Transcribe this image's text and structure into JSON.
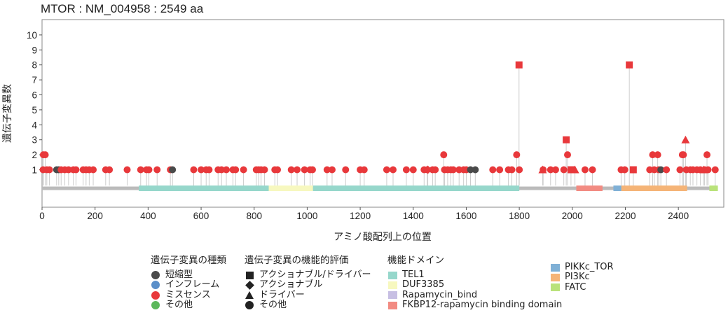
{
  "chart_data": {
    "type": "lollipop",
    "title": "MTOR : NM_004958 : 2549 aa",
    "xlabel": "アミノ酸配列上の位置",
    "ylabel": "遺伝子変異数",
    "xlim": [
      0,
      2549
    ],
    "ylim": [
      0,
      10
    ],
    "xticks": [
      0,
      200,
      400,
      600,
      800,
      1000,
      1200,
      1400,
      1600,
      1800,
      2000,
      2200,
      2400
    ],
    "yticks": [
      1,
      2,
      3,
      4,
      5,
      6,
      7,
      8,
      9,
      10
    ],
    "protein_length": 2549,
    "colors": {
      "truncating": "#4a4a4a",
      "inframe": "#5b8fc9",
      "missense": "#e8383b",
      "other": "#5cb85c",
      "stem": "#cccccc",
      "backbone": "#bbbbbb",
      "dark_symbol": "#222222"
    },
    "domains": [
      {
        "name": "TEL1",
        "start": 365,
        "end": 855,
        "color": "#96d7cb"
      },
      {
        "name": "DUF3385",
        "start": 855,
        "end": 1022,
        "color": "#f7f8bf"
      },
      {
        "name": "TEL1",
        "start": 1022,
        "end": 1800,
        "color": "#96d7cb"
      },
      {
        "name": "FKBP12-rapamycin binding domain",
        "start": 2015,
        "end": 2114,
        "color": "#f28b82"
      },
      {
        "name": "PIKKc_TOR",
        "start": 2155,
        "end": 2185,
        "color": "#7fb0d6"
      },
      {
        "name": "PI3Kc",
        "start": 2185,
        "end": 2433,
        "color": "#f5b477"
      },
      {
        "name": "FATC",
        "start": 2517,
        "end": 2549,
        "color": "#b9e27a"
      }
    ],
    "mutations": [
      {
        "pos": 5,
        "count": 2,
        "type": "missense",
        "shape": "circle"
      },
      {
        "pos": 12,
        "count": 2,
        "type": "missense",
        "shape": "circle"
      },
      {
        "pos": 4,
        "count": 1,
        "type": "missense",
        "shape": "circle"
      },
      {
        "pos": 18,
        "count": 1,
        "type": "missense",
        "shape": "circle"
      },
      {
        "pos": 28,
        "count": 1,
        "type": "missense",
        "shape": "circle"
      },
      {
        "pos": 55,
        "count": 1,
        "type": "truncating",
        "shape": "circle"
      },
      {
        "pos": 63,
        "count": 1,
        "type": "truncating",
        "shape": "circle"
      },
      {
        "pos": 72,
        "count": 1,
        "type": "missense",
        "shape": "circle"
      },
      {
        "pos": 86,
        "count": 1,
        "type": "missense",
        "shape": "circle"
      },
      {
        "pos": 100,
        "count": 1,
        "type": "missense",
        "shape": "circle"
      },
      {
        "pos": 118,
        "count": 1,
        "type": "missense",
        "shape": "circle"
      },
      {
        "pos": 128,
        "count": 1,
        "type": "missense",
        "shape": "circle"
      },
      {
        "pos": 155,
        "count": 1,
        "type": "missense",
        "shape": "circle"
      },
      {
        "pos": 166,
        "count": 1,
        "type": "missense",
        "shape": "circle"
      },
      {
        "pos": 178,
        "count": 1,
        "type": "missense",
        "shape": "circle"
      },
      {
        "pos": 193,
        "count": 1,
        "type": "missense",
        "shape": "circle"
      },
      {
        "pos": 240,
        "count": 1,
        "type": "missense",
        "shape": "circle"
      },
      {
        "pos": 254,
        "count": 1,
        "type": "missense",
        "shape": "circle"
      },
      {
        "pos": 321,
        "count": 1,
        "type": "missense",
        "shape": "circle"
      },
      {
        "pos": 372,
        "count": 1,
        "type": "missense",
        "shape": "circle"
      },
      {
        "pos": 394,
        "count": 1,
        "type": "missense",
        "shape": "circle"
      },
      {
        "pos": 403,
        "count": 1,
        "type": "missense",
        "shape": "circle"
      },
      {
        "pos": 434,
        "count": 1,
        "type": "missense",
        "shape": "circle"
      },
      {
        "pos": 484,
        "count": 1,
        "type": "missense",
        "shape": "circle"
      },
      {
        "pos": 492,
        "count": 1,
        "type": "truncating",
        "shape": "circle"
      },
      {
        "pos": 572,
        "count": 1,
        "type": "missense",
        "shape": "circle"
      },
      {
        "pos": 600,
        "count": 1,
        "type": "missense",
        "shape": "circle"
      },
      {
        "pos": 619,
        "count": 1,
        "type": "missense",
        "shape": "circle"
      },
      {
        "pos": 630,
        "count": 1,
        "type": "missense",
        "shape": "circle"
      },
      {
        "pos": 664,
        "count": 1,
        "type": "missense",
        "shape": "circle"
      },
      {
        "pos": 677,
        "count": 1,
        "type": "missense",
        "shape": "circle"
      },
      {
        "pos": 695,
        "count": 1,
        "type": "missense",
        "shape": "circle"
      },
      {
        "pos": 720,
        "count": 1,
        "type": "missense",
        "shape": "circle"
      },
      {
        "pos": 730,
        "count": 1,
        "type": "missense",
        "shape": "circle"
      },
      {
        "pos": 760,
        "count": 1,
        "type": "missense",
        "shape": "circle"
      },
      {
        "pos": 808,
        "count": 1,
        "type": "missense",
        "shape": "circle"
      },
      {
        "pos": 817,
        "count": 1,
        "type": "missense",
        "shape": "circle"
      },
      {
        "pos": 826,
        "count": 1,
        "type": "missense",
        "shape": "circle"
      },
      {
        "pos": 839,
        "count": 1,
        "type": "missense",
        "shape": "circle"
      },
      {
        "pos": 878,
        "count": 1,
        "type": "missense",
        "shape": "circle"
      },
      {
        "pos": 888,
        "count": 1,
        "type": "missense",
        "shape": "circle"
      },
      {
        "pos": 940,
        "count": 1,
        "type": "missense",
        "shape": "circle"
      },
      {
        "pos": 962,
        "count": 1,
        "type": "missense",
        "shape": "circle"
      },
      {
        "pos": 990,
        "count": 1,
        "type": "missense",
        "shape": "circle"
      },
      {
        "pos": 1011,
        "count": 1,
        "type": "missense",
        "shape": "circle"
      },
      {
        "pos": 1020,
        "count": 1,
        "type": "missense",
        "shape": "circle"
      },
      {
        "pos": 1075,
        "count": 1,
        "type": "missense",
        "shape": "circle"
      },
      {
        "pos": 1094,
        "count": 1,
        "type": "missense",
        "shape": "circle"
      },
      {
        "pos": 1145,
        "count": 1,
        "type": "missense",
        "shape": "circle"
      },
      {
        "pos": 1200,
        "count": 1,
        "type": "missense",
        "shape": "circle"
      },
      {
        "pos": 1215,
        "count": 1,
        "type": "missense",
        "shape": "circle"
      },
      {
        "pos": 1300,
        "count": 1,
        "type": "missense",
        "shape": "circle"
      },
      {
        "pos": 1324,
        "count": 1,
        "type": "missense",
        "shape": "circle"
      },
      {
        "pos": 1374,
        "count": 1,
        "type": "missense",
        "shape": "circle"
      },
      {
        "pos": 1400,
        "count": 1,
        "type": "missense",
        "shape": "circle"
      },
      {
        "pos": 1441,
        "count": 1,
        "type": "missense",
        "shape": "circle"
      },
      {
        "pos": 1453,
        "count": 1,
        "type": "missense",
        "shape": "circle"
      },
      {
        "pos": 1455,
        "count": 1,
        "type": "missense",
        "shape": "diamond"
      },
      {
        "pos": 1473,
        "count": 1,
        "type": "missense",
        "shape": "circle"
      },
      {
        "pos": 1483,
        "count": 1,
        "type": "missense",
        "shape": "circle"
      },
      {
        "pos": 1515,
        "count": 2,
        "type": "missense",
        "shape": "circle"
      },
      {
        "pos": 1518,
        "count": 1,
        "type": "missense",
        "shape": "circle"
      },
      {
        "pos": 1530,
        "count": 1,
        "type": "missense",
        "shape": "circle"
      },
      {
        "pos": 1542,
        "count": 1,
        "type": "missense",
        "shape": "circle"
      },
      {
        "pos": 1551,
        "count": 1,
        "type": "missense",
        "shape": "circle"
      },
      {
        "pos": 1573,
        "count": 1,
        "type": "missense",
        "shape": "circle"
      },
      {
        "pos": 1590,
        "count": 1,
        "type": "missense",
        "shape": "circle"
      },
      {
        "pos": 1600,
        "count": 1,
        "type": "missense",
        "shape": "circle"
      },
      {
        "pos": 1616,
        "count": 1,
        "type": "truncating",
        "shape": "circle"
      },
      {
        "pos": 1634,
        "count": 1,
        "type": "truncating",
        "shape": "circle"
      },
      {
        "pos": 1700,
        "count": 1,
        "type": "missense",
        "shape": "circle"
      },
      {
        "pos": 1726,
        "count": 1,
        "type": "missense",
        "shape": "circle"
      },
      {
        "pos": 1759,
        "count": 1,
        "type": "missense",
        "shape": "circle"
      },
      {
        "pos": 1772,
        "count": 1,
        "type": "missense",
        "shape": "circle"
      },
      {
        "pos": 1790,
        "count": 2,
        "type": "missense",
        "shape": "circle"
      },
      {
        "pos": 1799,
        "count": 8,
        "type": "missense",
        "shape": "square"
      },
      {
        "pos": 1800,
        "count": 1,
        "type": "missense",
        "shape": "circle"
      },
      {
        "pos": 1888,
        "count": 1,
        "type": "missense",
        "shape": "triangle"
      },
      {
        "pos": 1890,
        "count": 1,
        "type": "missense",
        "shape": "circle"
      },
      {
        "pos": 1918,
        "count": 1,
        "type": "missense",
        "shape": "circle"
      },
      {
        "pos": 1937,
        "count": 1,
        "type": "missense",
        "shape": "circle"
      },
      {
        "pos": 1968,
        "count": 1,
        "type": "missense",
        "shape": "circle"
      },
      {
        "pos": 1977,
        "count": 3,
        "type": "missense",
        "shape": "square"
      },
      {
        "pos": 1982,
        "count": 2,
        "type": "missense",
        "shape": "circle"
      },
      {
        "pos": 1995,
        "count": 1,
        "type": "missense",
        "shape": "square"
      },
      {
        "pos": 2010,
        "count": 1,
        "type": "missense",
        "shape": "triangle"
      },
      {
        "pos": 2048,
        "count": 1,
        "type": "missense",
        "shape": "circle"
      },
      {
        "pos": 2076,
        "count": 1,
        "type": "missense",
        "shape": "circle"
      },
      {
        "pos": 2184,
        "count": 1,
        "type": "missense",
        "shape": "circle"
      },
      {
        "pos": 2198,
        "count": 1,
        "type": "missense",
        "shape": "circle"
      },
      {
        "pos": 2215,
        "count": 8,
        "type": "missense",
        "shape": "square"
      },
      {
        "pos": 2230,
        "count": 1,
        "type": "missense",
        "shape": "square"
      },
      {
        "pos": 2292,
        "count": 1,
        "type": "missense",
        "shape": "circle"
      },
      {
        "pos": 2303,
        "count": 2,
        "type": "missense",
        "shape": "circle"
      },
      {
        "pos": 2309,
        "count": 1,
        "type": "missense",
        "shape": "circle"
      },
      {
        "pos": 2322,
        "count": 2,
        "type": "missense",
        "shape": "circle"
      },
      {
        "pos": 2326,
        "count": 1,
        "type": "missense",
        "shape": "circle"
      },
      {
        "pos": 2334,
        "count": 1,
        "type": "truncating",
        "shape": "circle"
      },
      {
        "pos": 2355,
        "count": 1,
        "type": "missense",
        "shape": "circle"
      },
      {
        "pos": 2406,
        "count": 1,
        "type": "missense",
        "shape": "circle"
      },
      {
        "pos": 2415,
        "count": 2,
        "type": "missense",
        "shape": "circle"
      },
      {
        "pos": 2419,
        "count": 2,
        "type": "missense",
        "shape": "circle"
      },
      {
        "pos": 2427,
        "count": 3,
        "type": "missense",
        "shape": "triangle"
      },
      {
        "pos": 2430,
        "count": 1,
        "type": "missense",
        "shape": "circle"
      },
      {
        "pos": 2445,
        "count": 1,
        "type": "missense",
        "shape": "circle"
      },
      {
        "pos": 2455,
        "count": 1,
        "type": "missense",
        "shape": "circle"
      },
      {
        "pos": 2470,
        "count": 1,
        "type": "missense",
        "shape": "circle"
      },
      {
        "pos": 2483,
        "count": 1,
        "type": "missense",
        "shape": "circle"
      },
      {
        "pos": 2495,
        "count": 1,
        "type": "missense",
        "shape": "triangle"
      },
      {
        "pos": 2499,
        "count": 1,
        "type": "missense",
        "shape": "circle"
      },
      {
        "pos": 2508,
        "count": 2,
        "type": "missense",
        "shape": "circle"
      },
      {
        "pos": 2512,
        "count": 1,
        "type": "missense",
        "shape": "circle"
      },
      {
        "pos": 2539,
        "count": 1,
        "type": "missense",
        "shape": "circle"
      }
    ]
  },
  "legend": {
    "mutation_type": {
      "title": "遺伝子変異の種類",
      "items": [
        {
          "label": "短縮型",
          "color": "#4a4a4a"
        },
        {
          "label": "インフレーム",
          "color": "#5b8fc9"
        },
        {
          "label": "ミスセンス",
          "color": "#e8383b"
        },
        {
          "label": "その他",
          "color": "#5cb85c"
        }
      ]
    },
    "functional": {
      "title": "遺伝子変異の機能的評価",
      "items": [
        {
          "label": "アクショナブル/ドライバー",
          "shape": "square"
        },
        {
          "label": "アクショナブル",
          "shape": "diamond"
        },
        {
          "label": "ドライバー",
          "shape": "triangle"
        },
        {
          "label": "その他",
          "shape": "circle"
        }
      ]
    },
    "domains": {
      "title": "機能ドメイン",
      "items": [
        {
          "label": "TEL1",
          "color": "#96d7cb"
        },
        {
          "label": "DUF3385",
          "color": "#f7f8bf"
        },
        {
          "label": "Rapamycin_bind",
          "color": "#c7bfe3"
        },
        {
          "label": "FKBP12-rapamycin binding domain",
          "color": "#f28b82"
        },
        {
          "label": "PIKKc_TOR",
          "color": "#7fb0d6"
        },
        {
          "label": "PI3Kc",
          "color": "#f5b477"
        },
        {
          "label": "FATC",
          "color": "#b9e27a"
        }
      ]
    }
  }
}
